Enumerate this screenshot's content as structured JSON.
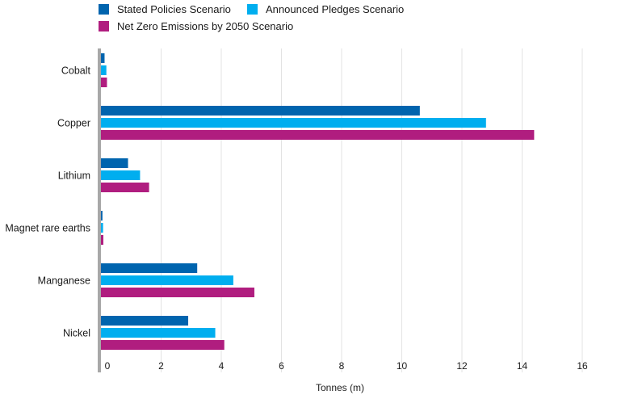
{
  "chart_data": {
    "type": "bar",
    "orientation": "horizontal",
    "categories": [
      "Cobalt",
      "Copper",
      "Lithium",
      "Magnet rare earths",
      "Manganese",
      "Nickel"
    ],
    "series": [
      {
        "name": "Stated Policies Scenario",
        "color": "#0064ae",
        "values": [
          0.12,
          10.6,
          0.9,
          0.05,
          3.2,
          2.9
        ]
      },
      {
        "name": "Announced Pledges Scenario",
        "color": "#00aeef",
        "values": [
          0.18,
          12.8,
          1.3,
          0.07,
          4.4,
          3.8
        ]
      },
      {
        "name": "Net Zero Emissions by 2050 Scenario",
        "color": "#b01d7f",
        "values": [
          0.2,
          14.4,
          1.6,
          0.08,
          5.1,
          4.1
        ]
      }
    ],
    "xticks": [
      "0",
      "2",
      "4",
      "6",
      "8",
      "10",
      "12",
      "14",
      "16"
    ],
    "xlim": [
      0,
      16
    ],
    "xlabel": "Tonnes (m)",
    "grid": true,
    "legend_position": "top"
  }
}
